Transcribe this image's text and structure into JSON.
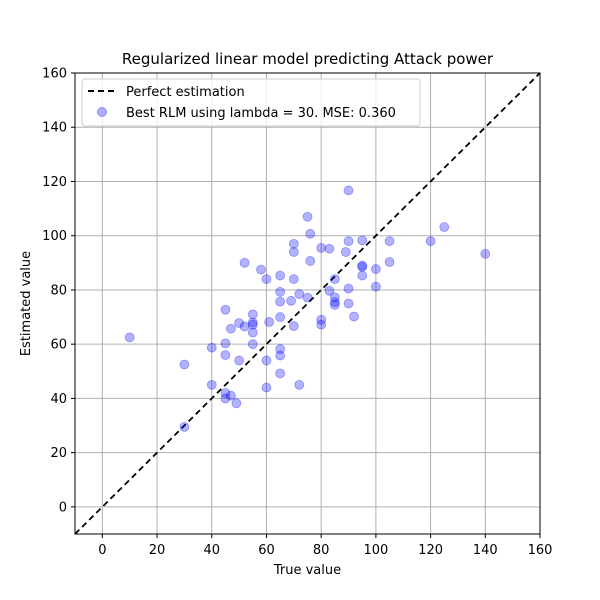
{
  "chart_data": {
    "type": "scatter",
    "title": "Regularized linear model predicting Attack power",
    "xlabel": "True value",
    "ylabel": "Estimated value",
    "xlim": [
      -10,
      160
    ],
    "ylim": [
      -10,
      160
    ],
    "xticks": [
      0,
      20,
      40,
      60,
      80,
      100,
      120,
      140,
      160
    ],
    "yticks": [
      0,
      20,
      40,
      60,
      80,
      100,
      120,
      140,
      160
    ],
    "grid": true,
    "legend_position": "top-left",
    "colors": {
      "points": "#0000ff",
      "reference_line": "#000000"
    },
    "series": [
      {
        "name": "Perfect estimation",
        "kind": "line",
        "style": "dashed",
        "x": [
          -10,
          160
        ],
        "y": [
          -10,
          160
        ]
      },
      {
        "name": "Best RLM using lambda = 30. MSE: 0.360",
        "kind": "scatter",
        "points": [
          [
            10,
            62.5
          ],
          [
            30,
            52.5
          ],
          [
            30,
            29.5
          ],
          [
            40,
            58.7
          ],
          [
            40,
            45
          ],
          [
            45,
            72.7
          ],
          [
            45,
            60.3
          ],
          [
            45,
            56
          ],
          [
            45,
            42
          ],
          [
            45,
            40
          ],
          [
            47,
            65.7
          ],
          [
            47,
            41
          ],
          [
            49,
            38.2
          ],
          [
            50,
            67.8
          ],
          [
            50,
            54
          ],
          [
            52,
            90
          ],
          [
            52,
            66.5
          ],
          [
            55,
            71
          ],
          [
            55,
            68
          ],
          [
            55,
            67.2
          ],
          [
            55,
            64.3
          ],
          [
            55,
            60
          ],
          [
            58,
            87.5
          ],
          [
            60,
            84
          ],
          [
            60,
            54
          ],
          [
            60,
            44
          ],
          [
            61,
            68.2
          ],
          [
            65,
            85.3
          ],
          [
            65,
            79.3
          ],
          [
            65,
            75.7
          ],
          [
            65,
            70
          ],
          [
            65,
            58.2
          ],
          [
            65,
            55.8
          ],
          [
            65,
            49.2
          ],
          [
            69,
            76
          ],
          [
            70,
            97
          ],
          [
            70,
            94
          ],
          [
            70,
            84
          ],
          [
            70,
            66.7
          ],
          [
            72,
            78.5
          ],
          [
            72,
            45
          ],
          [
            75,
            107
          ],
          [
            76,
            100.7
          ],
          [
            76,
            90.7
          ],
          [
            75,
            77.2
          ],
          [
            80,
            95.5
          ],
          [
            80,
            69
          ],
          [
            80,
            67.2
          ],
          [
            83,
            95.2
          ],
          [
            83,
            79.7
          ],
          [
            85,
            84
          ],
          [
            85,
            77.3
          ],
          [
            85,
            75.5
          ],
          [
            85,
            74.5
          ],
          [
            89,
            94
          ],
          [
            90,
            116.7
          ],
          [
            90,
            98
          ],
          [
            90,
            80.5
          ],
          [
            90,
            75
          ],
          [
            92,
            70.2
          ],
          [
            95,
            98.3
          ],
          [
            95,
            89
          ],
          [
            95,
            88.5
          ],
          [
            95,
            85.3
          ],
          [
            100,
            87.7
          ],
          [
            100,
            81.2
          ],
          [
            105,
            98
          ],
          [
            105,
            90.3
          ],
          [
            120,
            98
          ],
          [
            125,
            103.2
          ],
          [
            140,
            93.3
          ]
        ]
      }
    ]
  }
}
